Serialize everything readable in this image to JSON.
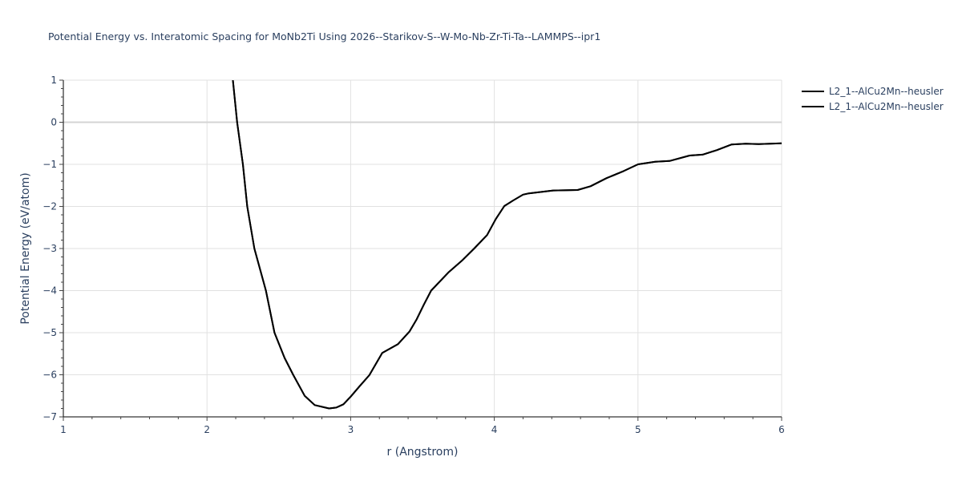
{
  "chart_data": {
    "type": "line",
    "title": "Potential Energy vs. Interatomic Spacing for MoNb2Ti Using 2026--Starikov-S--W-Mo-Nb-Zr-Ti-Ta--LAMMPS--ipr1",
    "xlabel": "r (Angstrom)",
    "ylabel": "Potential Energy (eV/atom)",
    "xlim": [
      1,
      6
    ],
    "ylim": [
      -7,
      1
    ],
    "xticks": [
      1,
      2,
      3,
      4,
      5,
      6
    ],
    "yticks": [
      1,
      0,
      -1,
      -2,
      -3,
      -4,
      -5,
      -6,
      -7
    ],
    "grid": true,
    "legend_position": "top-right-outside",
    "series": [
      {
        "name": "L2_1--AlCu2Mn--heusler",
        "color": "#000000",
        "x": [
          2.18,
          2.21,
          2.25,
          2.28,
          2.33,
          2.41,
          2.47,
          2.54,
          2.6,
          2.68,
          2.75,
          2.85,
          2.9,
          2.95,
          3.0,
          3.06,
          3.13,
          3.22,
          3.33,
          3.41,
          3.46,
          3.51,
          3.56,
          3.68,
          3.78,
          3.86,
          3.95,
          4.01,
          4.07,
          4.13,
          4.2,
          4.24,
          4.41,
          4.58,
          4.67,
          4.78,
          4.9,
          5.0,
          5.12,
          5.22,
          5.36,
          5.45,
          5.55,
          5.65,
          5.75,
          5.84,
          6.0
        ],
        "y": [
          1.0,
          0.0,
          -1.0,
          -2.0,
          -3.0,
          -4.0,
          -5.0,
          -5.6,
          -6.0,
          -6.5,
          -6.72,
          -6.8,
          -6.78,
          -6.7,
          -6.52,
          -6.28,
          -6.01,
          -5.48,
          -5.27,
          -4.97,
          -4.68,
          -4.33,
          -4.0,
          -3.57,
          -3.27,
          -3.0,
          -2.68,
          -2.3,
          -1.99,
          -1.86,
          -1.72,
          -1.69,
          -1.62,
          -1.61,
          -1.52,
          -1.33,
          -1.16,
          -1.0,
          -0.94,
          -0.92,
          -0.79,
          -0.77,
          -0.66,
          -0.53,
          -0.51,
          -0.52,
          -0.5
        ]
      },
      {
        "name": "L2_1--AlCu2Mn--heusler",
        "color": "#000000",
        "x": [
          2.18,
          2.21,
          2.25,
          2.28,
          2.33,
          2.41,
          2.47,
          2.54,
          2.6,
          2.68,
          2.75,
          2.85,
          2.9,
          2.95,
          3.0,
          3.06,
          3.13,
          3.22,
          3.33,
          3.41,
          3.46,
          3.51,
          3.56,
          3.68,
          3.78,
          3.86,
          3.95,
          4.01,
          4.07,
          4.13,
          4.2,
          4.24,
          4.41,
          4.58,
          4.67,
          4.78,
          4.9,
          5.0,
          5.12,
          5.22,
          5.36,
          5.45,
          5.55,
          5.65,
          5.75,
          5.84,
          6.0
        ],
        "y": [
          1.0,
          0.0,
          -1.0,
          -2.0,
          -3.0,
          -4.0,
          -5.0,
          -5.6,
          -6.0,
          -6.5,
          -6.72,
          -6.8,
          -6.78,
          -6.7,
          -6.52,
          -6.28,
          -6.01,
          -5.48,
          -5.27,
          -4.97,
          -4.68,
          -4.33,
          -4.0,
          -3.57,
          -3.27,
          -3.0,
          -2.68,
          -2.3,
          -1.99,
          -1.86,
          -1.72,
          -1.69,
          -1.62,
          -1.61,
          -1.52,
          -1.33,
          -1.16,
          -1.0,
          -0.94,
          -0.92,
          -0.79,
          -0.77,
          -0.66,
          -0.53,
          -0.51,
          -0.52,
          -0.5
        ]
      }
    ]
  },
  "legend": {
    "items": [
      {
        "label": "L2_1--AlCu2Mn--heusler"
      },
      {
        "label": "L2_1--AlCu2Mn--heusler"
      }
    ]
  }
}
